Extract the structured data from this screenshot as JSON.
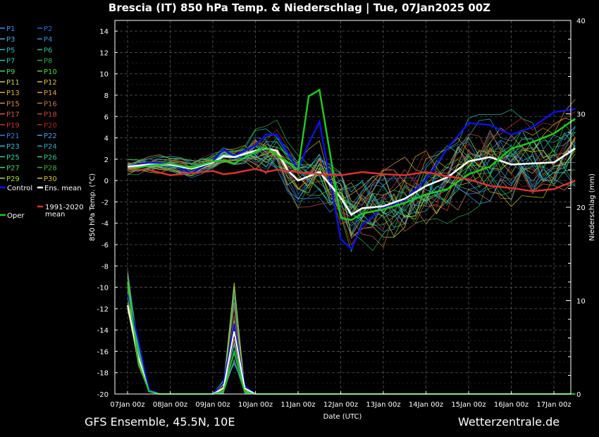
{
  "page": {
    "title": "Brescia  (IT)  850 hPa Temp. & Niederschlag | Tue, 07Jan2025 00Z",
    "footer_left": "GFS Ensemble, 45.5N, 10E",
    "footer_right": "Wetterzentrale.de"
  },
  "colors": {
    "background": "#000000",
    "grid": "#555555",
    "text": "#ffffff"
  },
  "legend": {
    "members": [
      {
        "label": "P1",
        "color": "#3a8ee8"
      },
      {
        "label": "P2",
        "color": "#2a62d6"
      },
      {
        "label": "P3",
        "color": "#4aa6e0"
      },
      {
        "label": "P4",
        "color": "#2f8fd0"
      },
      {
        "label": "P5",
        "color": "#2cb8c8"
      },
      {
        "label": "P6",
        "color": "#2bbf8f"
      },
      {
        "label": "P7",
        "color": "#28c6b0"
      },
      {
        "label": "P8",
        "color": "#2fae55"
      },
      {
        "label": "P9",
        "color": "#3fd870"
      },
      {
        "label": "P10",
        "color": "#4fd82a"
      },
      {
        "label": "P11",
        "color": "#c8d24a"
      },
      {
        "label": "P12",
        "color": "#d8c040"
      },
      {
        "label": "P13",
        "color": "#e0b030"
      },
      {
        "label": "P14",
        "color": "#e0a040"
      },
      {
        "label": "P15",
        "color": "#d88a50"
      },
      {
        "label": "P16",
        "color": "#c87040"
      },
      {
        "label": "P17",
        "color": "#d06040"
      },
      {
        "label": "P18",
        "color": "#c84838"
      },
      {
        "label": "P19",
        "color": "#b83828"
      },
      {
        "label": "P20",
        "color": "#a82818"
      },
      {
        "label": "P21",
        "color": "#3a7ae0"
      },
      {
        "label": "P22",
        "color": "#3aa0e8"
      },
      {
        "label": "P23",
        "color": "#38b8e0"
      },
      {
        "label": "P24",
        "color": "#30a0c0"
      },
      {
        "label": "P25",
        "color": "#30d0a8"
      },
      {
        "label": "P26",
        "color": "#30c890"
      },
      {
        "label": "P27",
        "color": "#40d860"
      },
      {
        "label": "P28",
        "color": "#38b030"
      },
      {
        "label": "P29",
        "color": "#a8e030"
      },
      {
        "label": "P30",
        "color": "#d0c820"
      }
    ],
    "control": {
      "label": "Control",
      "color": "#1010e0"
    },
    "ens_mean": {
      "label": "Ens. mean",
      "color": "#ffffff"
    },
    "oper": {
      "label": "Oper",
      "color": "#20c820"
    },
    "clim": {
      "label_line1": "1991-2020",
      "label_line2": "mean",
      "color": "#e03030"
    }
  },
  "chart_data": {
    "type": "line",
    "xlabel": "Date (UTC)",
    "ylabel": "850 hPa Temp. (°C)",
    "y2label": "Niederschlag (mm)",
    "x_ticks": [
      "07Jan 00z",
      "08Jan 00z",
      "09Jan 00z",
      "10Jan 00z",
      "11Jan 00z",
      "12Jan 00z",
      "13Jan 00z",
      "14Jan 00z",
      "15Jan 00z",
      "16Jan 00z",
      "17Jan 00z"
    ],
    "x_range_days": [
      0,
      10.5
    ],
    "ylim": [
      -20,
      15
    ],
    "y_ticks": [
      -20,
      -18,
      -16,
      -14,
      -12,
      -10,
      -8,
      -6,
      -4,
      -2,
      0,
      2,
      4,
      6,
      8,
      10,
      12,
      14
    ],
    "y2lim": [
      0,
      40
    ],
    "y2_ticks": [
      0,
      10,
      20,
      30,
      40
    ],
    "grid": true,
    "series": [
      {
        "name": "Control",
        "color": "#1010e0",
        "width": 2.5,
        "x": [
          0,
          0.5,
          1,
          1.5,
          2,
          2.25,
          2.5,
          3,
          3.25,
          3.5,
          4,
          4.25,
          4.5,
          5,
          5.25,
          5.5,
          6,
          6.5,
          7,
          7.5,
          8,
          8.5,
          9,
          9.5,
          10,
          10.5
        ],
        "y": [
          1.3,
          1.7,
          1.6,
          0.7,
          1.8,
          2.9,
          2.3,
          3.3,
          4.3,
          4.3,
          1.0,
          3.5,
          5.5,
          -5.5,
          -6.4,
          -4.2,
          -2.5,
          -1.8,
          0.1,
          3.0,
          5.4,
          5.2,
          4.3,
          5.0,
          6.4,
          6.7
        ]
      },
      {
        "name": "Ens. mean",
        "color": "#ffffff",
        "width": 2.5,
        "x": [
          0,
          0.5,
          1,
          1.5,
          2,
          2.25,
          2.5,
          3,
          3.25,
          3.5,
          3.75,
          4,
          4.5,
          5,
          5.25,
          5.5,
          6,
          6.5,
          7,
          7.5,
          8,
          8.5,
          9,
          9.5,
          10,
          10.5
        ],
        "y": [
          1.3,
          1.5,
          1.5,
          1.1,
          1.7,
          2.3,
          2.2,
          2.8,
          3.0,
          2.8,
          1.0,
          0.0,
          0.8,
          -1.6,
          -3.2,
          -2.6,
          -2.4,
          -1.7,
          -0.5,
          0.3,
          1.8,
          2.2,
          1.5,
          1.6,
          1.7,
          3.0
        ]
      },
      {
        "name": "Oper",
        "color": "#20c820",
        "width": 2.5,
        "x": [
          0,
          0.5,
          1,
          1.5,
          2,
          2.25,
          2.5,
          3,
          3.25,
          3.5,
          4,
          4.25,
          4.5,
          5,
          5.25,
          5.5,
          6,
          6.5,
          7,
          7.5,
          8,
          8.5,
          9,
          9.5,
          10,
          10.5
        ],
        "y": [
          1.0,
          1.4,
          1.6,
          1.2,
          1.8,
          1.9,
          1.6,
          2.7,
          3.1,
          2.4,
          1.0,
          7.9,
          8.5,
          -3.5,
          -3.7,
          -3.1,
          -2.7,
          -2.1,
          -1.3,
          -0.8,
          0.6,
          1.3,
          3.0,
          3.6,
          4.4,
          5.8
        ]
      },
      {
        "name": "1991-2020 mean",
        "color": "#e03030",
        "width": 2.5,
        "x": [
          0,
          0.5,
          1,
          1.5,
          2,
          2.25,
          2.5,
          3,
          3.25,
          3.5,
          4,
          4.5,
          5,
          5.5,
          6,
          6.5,
          7,
          7.5,
          8,
          8.5,
          9,
          9.5,
          10,
          10.5
        ],
        "y": [
          1.0,
          1.0,
          0.5,
          0.7,
          0.9,
          0.6,
          0.7,
          1.1,
          0.8,
          1.0,
          0.8,
          0.6,
          0.5,
          0.8,
          0.6,
          0.5,
          0.8,
          0.4,
          0.1,
          -0.5,
          -0.7,
          -1.0,
          -0.8,
          0.0
        ]
      }
    ],
    "precip_series": [
      {
        "name": "Control",
        "color": "#1010e0",
        "x": [
          0,
          0.25,
          0.5,
          0.75,
          2,
          2.25,
          2.5,
          2.75,
          3,
          10.5
        ],
        "y": [
          10.7,
          5.8,
          0.5,
          0,
          0,
          1.2,
          7.5,
          0.8,
          0,
          0
        ]
      },
      {
        "name": "Ens. mean",
        "color": "#ffffff",
        "x": [
          0,
          0.25,
          0.5,
          0.75,
          2,
          2.25,
          2.5,
          2.75,
          3,
          10.5
        ],
        "y": [
          9.5,
          4.0,
          0.3,
          0,
          0,
          0.6,
          6.7,
          0.6,
          0,
          0
        ]
      },
      {
        "name": "Oper",
        "color": "#20c820",
        "x": [
          0,
          0.25,
          0.5,
          0.75,
          2,
          2.25,
          2.5,
          2.75,
          3,
          10.5
        ],
        "y": [
          12.0,
          3.5,
          0.3,
          0,
          0,
          0.3,
          4.5,
          0.2,
          0,
          0
        ]
      }
    ]
  }
}
